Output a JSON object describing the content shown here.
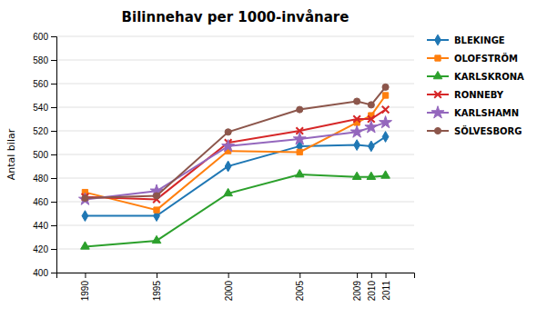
{
  "chart_data": {
    "type": "line",
    "title": "Bilinnehav per 1000-invånare",
    "ylabel": "Antal bilar",
    "x": [
      1990,
      1995,
      2000,
      2005,
      2009,
      2010,
      2011
    ],
    "xlim": [
      1988,
      2013
    ],
    "xticks": [
      1990,
      1995,
      2000,
      2005,
      2009,
      2010,
      2011
    ],
    "ylim": [
      400,
      600
    ],
    "yticks": [
      400,
      420,
      440,
      460,
      480,
      500,
      520,
      540,
      560,
      580,
      600
    ],
    "grid": true,
    "legend": "right",
    "series": [
      {
        "name": "BLEKINGE",
        "marker": "diamond",
        "values": [
          448,
          448,
          490,
          507,
          508,
          507,
          515
        ]
      },
      {
        "name": "OLOFSTRÖM",
        "marker": "square",
        "values": [
          468,
          453,
          503,
          502,
          527,
          533,
          550
        ]
      },
      {
        "name": "KARLSKRONA",
        "marker": "triangle",
        "values": [
          422,
          427,
          467,
          483,
          481,
          481,
          482
        ]
      },
      {
        "name": "RONNEBY",
        "marker": "x",
        "values": [
          464,
          462,
          510,
          520,
          530,
          530,
          538
        ]
      },
      {
        "name": "KARLSHAMN",
        "marker": "star",
        "values": [
          462,
          469,
          507,
          513,
          519,
          523,
          527
        ]
      },
      {
        "name": "SÖLVESBORG",
        "marker": "circle",
        "values": [
          463,
          465,
          519,
          538,
          545,
          542,
          557
        ]
      }
    ]
  }
}
